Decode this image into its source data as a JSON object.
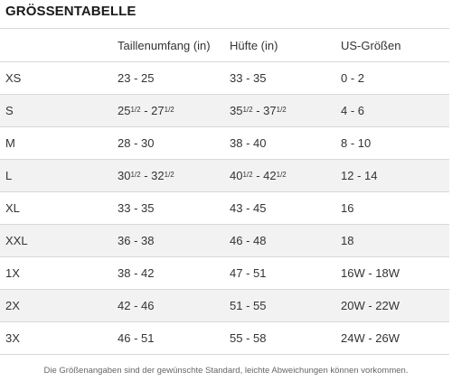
{
  "title": "GRÖSSENTABELLE",
  "columns": [
    "",
    "Taillenumfang (in)",
    "Hüfte (in)",
    "US-Größen"
  ],
  "rows": [
    {
      "size": "XS",
      "waist": {
        "a": "23",
        "b": "25"
      },
      "hip": {
        "a": "33",
        "b": "35"
      },
      "us": "0 - 2"
    },
    {
      "size": "S",
      "waist": {
        "a": "25",
        "a_frac": "1/2",
        "b": "27",
        "b_frac": "1/2"
      },
      "hip": {
        "a": "35",
        "a_frac": "1/2",
        "b": "37",
        "b_frac": "1/2"
      },
      "us": "4 - 6"
    },
    {
      "size": "M",
      "waist": {
        "a": "28",
        "b": "30"
      },
      "hip": {
        "a": "38",
        "b": "40"
      },
      "us": "8 - 10"
    },
    {
      "size": "L",
      "waist": {
        "a": "30",
        "a_frac": "1/2",
        "b": "32",
        "b_frac": "1/2"
      },
      "hip": {
        "a": "40",
        "a_frac": "1/2",
        "b": "42",
        "b_frac": "1/2"
      },
      "us": "12 - 14"
    },
    {
      "size": "XL",
      "waist": {
        "a": "33",
        "b": "35"
      },
      "hip": {
        "a": "43",
        "b": "45"
      },
      "us": "16"
    },
    {
      "size": "XXL",
      "waist": {
        "a": "36",
        "b": "38"
      },
      "hip": {
        "a": "46",
        "b": "48"
      },
      "us": "18"
    },
    {
      "size": "1X",
      "waist": {
        "a": "38",
        "b": "42"
      },
      "hip": {
        "a": "47",
        "b": "51"
      },
      "us": "16W - 18W"
    },
    {
      "size": "2X",
      "waist": {
        "a": "42",
        "b": "46"
      },
      "hip": {
        "a": "51",
        "b": "55"
      },
      "us": "20W - 22W"
    },
    {
      "size": "3X",
      "waist": {
        "a": "46",
        "b": "51"
      },
      "hip": {
        "a": "55",
        "b": "58"
      },
      "us": "24W - 26W"
    }
  ],
  "footer": "Die Größenangaben sind der gewünschte Standard, leichte Abweichungen können vorkommen.",
  "colors": {
    "alt_row": "#f2f2f2",
    "border": "#d9d9d9",
    "text": "#333333"
  }
}
